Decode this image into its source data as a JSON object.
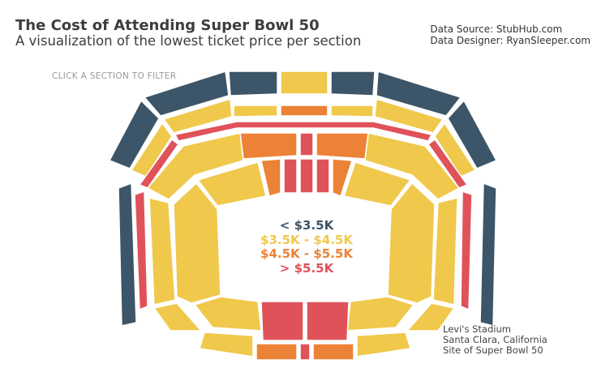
{
  "header": {
    "title": "The Cost of Attending Super Bowl 50",
    "subtitle": "A visualization of the lowest ticket price per section"
  },
  "credits": {
    "source": "Data Source: StubHub.com",
    "designer": "Data Designer: RyanSleeper.com"
  },
  "hint": "CLICK A SECTION TO FILTER",
  "legend": [
    {
      "label": "< $3.5K",
      "color": "#3c5568"
    },
    {
      "label": "$3.5K - $4.5K",
      "color": "#f0c84b"
    },
    {
      "label": "$4.5K - $5.5K",
      "color": "#ec8235"
    },
    {
      "label": "> $5.5K",
      "color": "#e0525a"
    }
  ],
  "venue": {
    "line1": "Levi's Stadium",
    "line2": "Santa Clara, California",
    "line3": "Site of Super Bowl 50"
  }
}
